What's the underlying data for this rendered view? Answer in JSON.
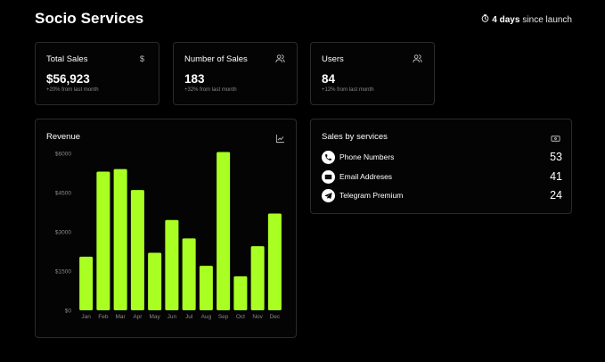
{
  "header": {
    "title": "Socio Services",
    "launch_days": "4 days",
    "launch_suffix": "since launch",
    "clock_icon": "clock-icon"
  },
  "stats": [
    {
      "label": "Total Sales",
      "value": "$56,923",
      "sub": "+20% from last month",
      "icon": "dollar-icon"
    },
    {
      "label": "Number of Sales",
      "value": "183",
      "sub": "+32% from last month",
      "icon": "users-icon"
    },
    {
      "label": "Users",
      "value": "84",
      "sub": "+12% from last month",
      "icon": "users-icon"
    }
  ],
  "revenue": {
    "title": "Revenue",
    "icon": "line-chart-icon"
  },
  "services": {
    "title": "Sales by services",
    "icon": "banknote-icon",
    "items": [
      {
        "name": "Phone Numbers",
        "count": "53",
        "icon": "phone-icon"
      },
      {
        "name": "Email Addreses",
        "count": "41",
        "icon": "mail-icon"
      },
      {
        "name": "Telegram Premium",
        "count": "24",
        "icon": "telegram-icon"
      }
    ]
  },
  "chart_data": {
    "type": "bar",
    "categories": [
      "Jan",
      "Feb",
      "Mar",
      "Apr",
      "May",
      "Jun",
      "Jul",
      "Aug",
      "Sep",
      "Oct",
      "Nov",
      "Dec"
    ],
    "values": [
      2050,
      5300,
      5400,
      4600,
      2200,
      3450,
      2750,
      1700,
      6050,
      1300,
      2450,
      3700
    ],
    "ylim": [
      0,
      6000
    ],
    "yticks": [
      0,
      1500,
      3000,
      4500,
      6000
    ],
    "ytick_labels": [
      "$0",
      "$1500",
      "$3000",
      "$4500",
      "$6000"
    ],
    "bar_color": "#aaff22",
    "grid": false
  },
  "colors": {
    "background": "#000000",
    "card_border": "#2b2b2b",
    "accent": "#aaff22"
  }
}
